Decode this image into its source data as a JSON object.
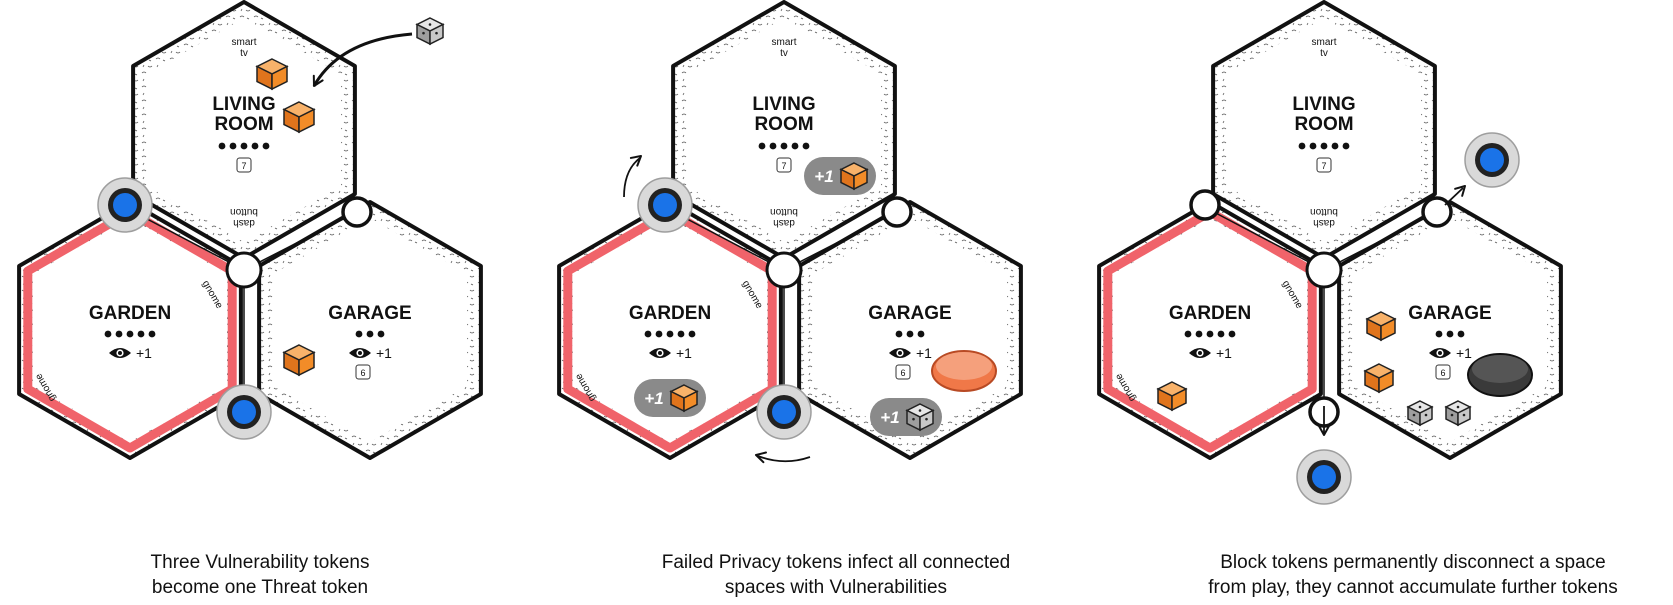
{
  "panels": [
    {
      "caption_line1": "Three Vulnerability tokens",
      "caption_line2": "become one Threat token",
      "rooms": {
        "living": {
          "name_line1": "LIVING",
          "name_line2": "ROOM",
          "feature_top_line1": "smart",
          "feature_top_line2": "tv",
          "feature_bottom_line1": "dash",
          "feature_bottom_line2": "button",
          "cost_dots": 5,
          "number": "7"
        },
        "garden": {
          "name": "GARDEN",
          "feature_a": "gnome",
          "feature_b": "gnome",
          "cost_dots": 5,
          "privacy_bonus": "+1"
        },
        "garage": {
          "name": "GARAGE",
          "cost_dots": 3,
          "privacy_bonus": "+1",
          "number": "6"
        }
      },
      "chips": []
    },
    {
      "caption_line1": "Failed Privacy tokens infect all connected",
      "caption_line2": "spaces with Vulnerabilities",
      "rooms": {
        "living": {
          "name_line1": "LIVING",
          "name_line2": "ROOM",
          "feature_top_line1": "smart",
          "feature_top_line2": "tv",
          "feature_bottom_line1": "dash",
          "feature_bottom_line2": "button",
          "cost_dots": 5,
          "number": "7"
        },
        "garden": {
          "name": "GARDEN",
          "feature_a": "gnome",
          "feature_b": "gnome",
          "cost_dots": 5,
          "privacy_bonus": "+1"
        },
        "garage": {
          "name": "GARAGE",
          "cost_dots": 3,
          "privacy_bonus": "+1",
          "number": "6"
        }
      },
      "chips": [
        {
          "room": "living",
          "label": "+1",
          "cube": "vulnerability"
        },
        {
          "room": "garden",
          "label": "+1",
          "cube": "vulnerability"
        },
        {
          "room": "garage",
          "label": "+1",
          "cube": "threat"
        }
      ]
    },
    {
      "caption_line1": "Block tokens permanently disconnect a space",
      "caption_line2": "from play, they cannot accumulate further tokens",
      "rooms": {
        "living": {
          "name_line1": "LIVING",
          "name_line2": "ROOM",
          "feature_top_line1": "smart",
          "feature_top_line2": "tv",
          "feature_bottom_line1": "dash",
          "feature_bottom_line2": "button",
          "cost_dots": 5,
          "number": "7"
        },
        "garden": {
          "name": "GARDEN",
          "feature_a": "gnome",
          "feature_b": "gnome",
          "cost_dots": 5,
          "privacy_bonus": "+1"
        },
        "garage": {
          "name": "GARAGE",
          "cost_dots": 3,
          "privacy_bonus": "+1",
          "number": "6"
        }
      },
      "chips": []
    }
  ],
  "colors": {
    "vulnerability_cube": "#f28c28",
    "threat_cube": "#bdbdbd",
    "privacy_token": "#1a73e8",
    "highlight_ring": "#f0636a",
    "failed_token": "#f07848",
    "block_token": "#3a3a3a",
    "chip_bg": "#8a8a8a"
  }
}
